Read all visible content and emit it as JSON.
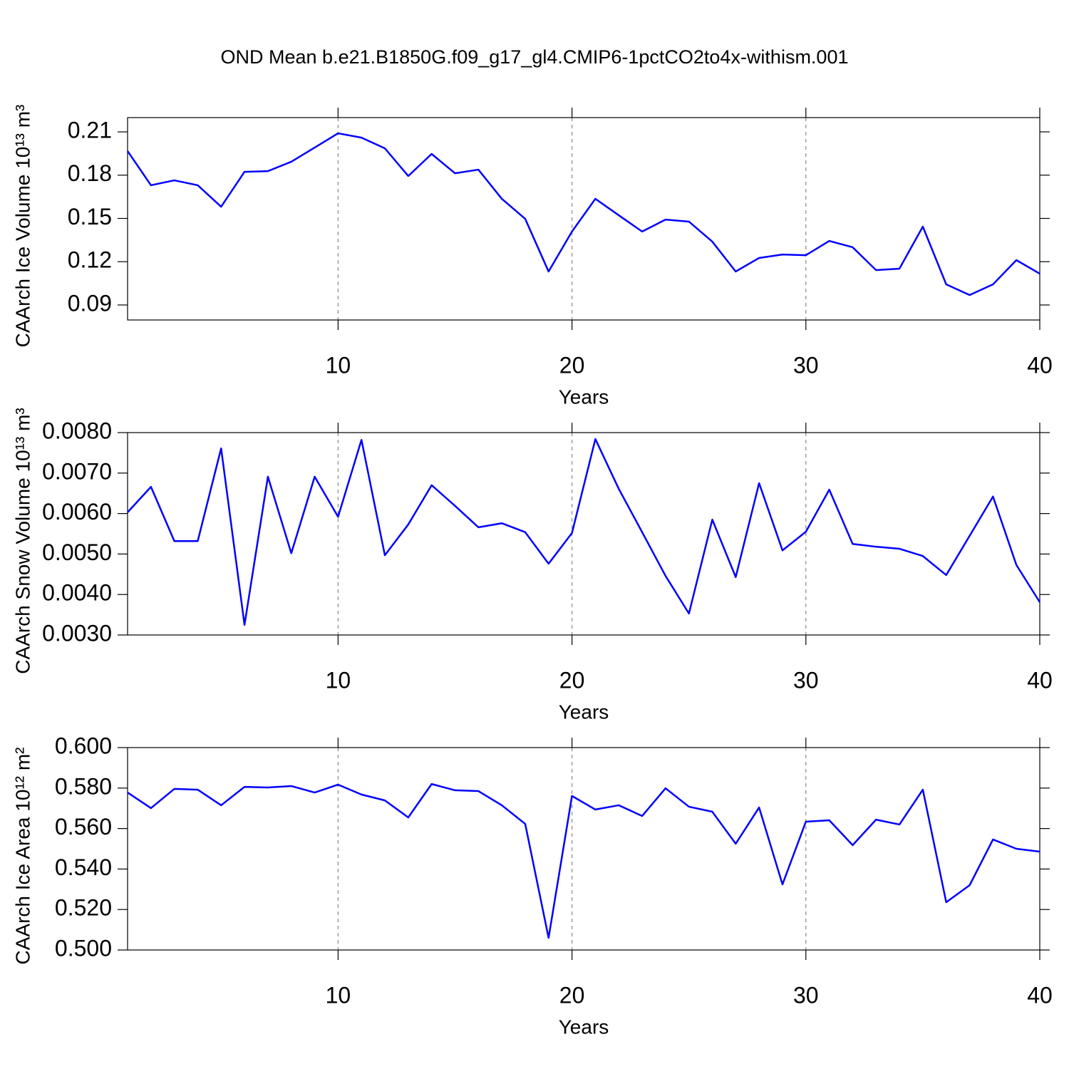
{
  "title": "OND Mean b.e21.B1850G.f09_g17_gl4.CMIP6-1pctCO2to4x-withism.001",
  "chart_data": [
    {
      "type": "line",
      "y_label": "CAArch Ice Volume 10¹³ m³",
      "x_label": "Years",
      "color": "#0000ff",
      "grid": true,
      "x": [
        1,
        2,
        3,
        4,
        5,
        6,
        7,
        8,
        9,
        10,
        11,
        12,
        13,
        14,
        15,
        16,
        17,
        18,
        19,
        20,
        21,
        22,
        23,
        24,
        25,
        26,
        27,
        28,
        29,
        30,
        31,
        32,
        33,
        34,
        35,
        36,
        37,
        38,
        39,
        40
      ],
      "values": [
        0.1967,
        0.173,
        0.1764,
        0.173,
        0.1581,
        0.1823,
        0.1828,
        0.1893,
        0.1991,
        0.209,
        0.206,
        0.1986,
        0.1794,
        0.1947,
        0.1813,
        0.1838,
        0.1636,
        0.1497,
        0.1132,
        0.1409,
        0.1636,
        0.1522,
        0.1409,
        0.1492,
        0.1478,
        0.1339,
        0.1132,
        0.1226,
        0.125,
        0.1245,
        0.1344,
        0.13,
        0.1142,
        0.1152,
        0.1443,
        0.1043,
        0.0969,
        0.1043,
        0.1211,
        0.1117
      ],
      "xlim": [
        1,
        40
      ],
      "xticks": [
        10,
        20,
        30,
        40
      ],
      "ylim": [
        0.0796,
        0.2199
      ],
      "yticks": [
        0.09,
        0.12,
        0.15,
        0.18,
        0.21
      ]
    },
    {
      "type": "line",
      "y_label": "CAArch Snow Volume 10¹³ m³",
      "x_label": "Years",
      "color": "#0000ff",
      "grid": true,
      "x": [
        1,
        2,
        3,
        4,
        5,
        6,
        7,
        8,
        9,
        10,
        11,
        12,
        13,
        14,
        15,
        16,
        17,
        18,
        19,
        20,
        21,
        22,
        23,
        24,
        25,
        26,
        27,
        28,
        29,
        30,
        31,
        32,
        33,
        34,
        35,
        36,
        37,
        38,
        39,
        40
      ],
      "values": [
        0.00603,
        0.00666,
        0.00532,
        0.00532,
        0.00761,
        0.00325,
        0.00691,
        0.00502,
        0.00691,
        0.00592,
        0.00782,
        0.00497,
        0.00573,
        0.0067,
        0.00619,
        0.00566,
        0.00576,
        0.00554,
        0.00476,
        0.00552,
        0.00784,
        0.00661,
        0.00554,
        0.00446,
        0.00353,
        0.00585,
        0.00443,
        0.00675,
        0.00509,
        0.00555,
        0.00659,
        0.00525,
        0.00518,
        0.00513,
        0.00495,
        0.00448,
        0.00545,
        0.00642,
        0.00473,
        0.00381
      ],
      "xlim": [
        1,
        40
      ],
      "xticks": [
        10,
        20,
        30,
        40
      ],
      "ylim": [
        0.003,
        0.008
      ],
      "yticks": [
        {
          "value": 0.003,
          "label": "0.0030"
        },
        {
          "value": 0.004,
          "label": "0.0040"
        },
        {
          "value": 0.005,
          "label": "0.0050"
        },
        {
          "value": 0.006,
          "label": "0.0060"
        },
        {
          "value": 0.007,
          "label": "0.0070"
        },
        {
          "value": 0.008,
          "label": "0.0080"
        }
      ]
    },
    {
      "type": "line",
      "y_label": "CAArch Ice Area 10¹² m²",
      "x_label": "Years",
      "color": "#0000ff",
      "grid": true,
      "x": [
        1,
        2,
        3,
        4,
        5,
        6,
        7,
        8,
        9,
        10,
        11,
        12,
        13,
        14,
        15,
        16,
        17,
        18,
        19,
        20,
        21,
        22,
        23,
        24,
        25,
        26,
        27,
        28,
        29,
        30,
        31,
        32,
        33,
        34,
        35,
        36,
        37,
        38,
        39,
        40
      ],
      "values": [
        0.5778,
        0.5701,
        0.5796,
        0.5792,
        0.5715,
        0.5806,
        0.5803,
        0.581,
        0.5778,
        0.5817,
        0.5768,
        0.5739,
        0.5655,
        0.582,
        0.5789,
        0.5785,
        0.5715,
        0.5623,
        0.506,
        0.5761,
        0.5694,
        0.5715,
        0.5662,
        0.5799,
        0.5708,
        0.5683,
        0.5525,
        0.5704,
        0.5324,
        0.5634,
        0.5641,
        0.5518,
        0.5644,
        0.562,
        0.5792,
        0.5236,
        0.532,
        0.5546,
        0.55,
        0.5486
      ],
      "xlim": [
        1,
        40
      ],
      "xticks": [
        10,
        20,
        30,
        40
      ],
      "ylim": [
        0.5,
        0.6
      ],
      "yticks": [
        {
          "value": 0.5,
          "label": "0.500"
        },
        {
          "value": 0.52,
          "label": "0.520"
        },
        {
          "value": 0.54,
          "label": "0.540"
        },
        {
          "value": 0.56,
          "label": "0.560"
        },
        {
          "value": 0.58,
          "label": "0.580"
        },
        {
          "value": 0.6,
          "label": "0.600"
        }
      ]
    }
  ]
}
